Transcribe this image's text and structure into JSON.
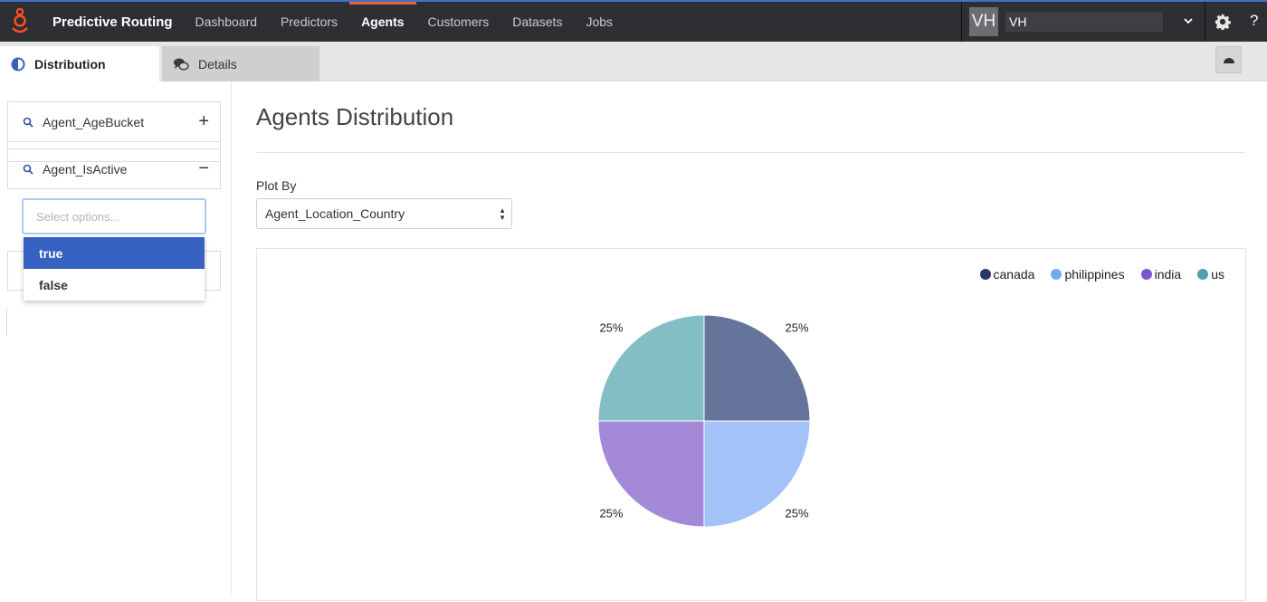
{
  "app": {
    "title": "Predictive Routing"
  },
  "nav": [
    {
      "label": "Dashboard",
      "active": false
    },
    {
      "label": "Predictors",
      "active": false
    },
    {
      "label": "Agents",
      "active": true
    },
    {
      "label": "Customers",
      "active": false
    },
    {
      "label": "Datasets",
      "active": false
    },
    {
      "label": "Jobs",
      "active": false
    }
  ],
  "user": {
    "avatar": "VH",
    "name": "VH"
  },
  "tabs": {
    "distribution": "Distribution",
    "details": "Details"
  },
  "sidebar": {
    "filters": [
      {
        "label": "Agent_AgeBucket",
        "toggle": "+"
      },
      {
        "label": "Agent_IsActive",
        "toggle": "−"
      }
    ],
    "select_placeholder": "Select options...",
    "options": [
      {
        "label": "true",
        "selected": true
      },
      {
        "label": "false",
        "selected": false
      }
    ]
  },
  "main": {
    "title": "Agents Distribution",
    "plot_by_label": "Plot By",
    "plot_by_value": "Agent_Location_Country"
  },
  "colors": {
    "accent": "#3461c2",
    "nav_active": "#e8603c"
  },
  "chart_data": {
    "type": "pie",
    "legend_position": "top-right",
    "slices": [
      {
        "label": "canada",
        "value": 25,
        "display": "25%",
        "color": "#65749a",
        "legend_color": "#253866"
      },
      {
        "label": "philippines",
        "value": 25,
        "display": "25%",
        "color": "#a2c2f8",
        "legend_color": "#7aa7f5"
      },
      {
        "label": "india",
        "value": 25,
        "display": "25%",
        "color": "#a389d8",
        "legend_color": "#7b56cc"
      },
      {
        "label": "us",
        "value": 25,
        "display": "25%",
        "color": "#84bec5",
        "legend_color": "#4ea2ad"
      }
    ]
  }
}
